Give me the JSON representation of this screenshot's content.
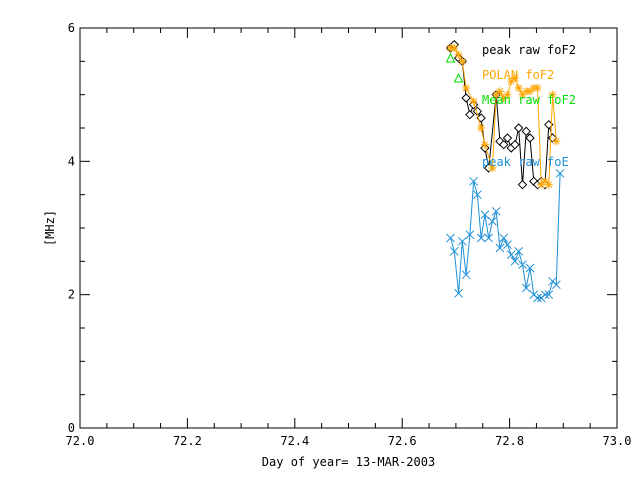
{
  "chart_data": {
    "type": "line",
    "xlabel": "Day of year= 13-MAR-2003",
    "ylabel": "[MHz]",
    "xlim": [
      72.0,
      73.0
    ],
    "ylim": [
      0,
      6
    ],
    "x_ticks": [
      "72.0",
      "72.2",
      "72.4",
      "72.6",
      "72.8",
      "73.0"
    ],
    "y_ticks": [
      "0",
      "2",
      "4",
      "6"
    ],
    "grid": false,
    "legend_position": "top-right",
    "colors": {
      "axes": "#000000",
      "peak_foF2": "#000000",
      "polan_foF2": "#ffa500",
      "mean_foF2": "#00dd00",
      "peak_foE": "#1e90d8"
    },
    "series": [
      {
        "name": "peak raw foF2",
        "marker": "diamond",
        "x": [
          72.69,
          72.697,
          72.705,
          72.712,
          72.719,
          72.726,
          72.733,
          72.74,
          72.747,
          72.754,
          72.761,
          72.775,
          72.782,
          72.789,
          72.796,
          72.803,
          72.81,
          72.817,
          72.824,
          72.831,
          72.838,
          72.845,
          72.852,
          72.859,
          72.866,
          72.873,
          72.88
        ],
        "y": [
          5.7,
          5.75,
          5.55,
          5.5,
          4.95,
          4.7,
          4.85,
          4.75,
          4.65,
          4.2,
          3.9,
          5.0,
          4.3,
          4.25,
          4.35,
          4.2,
          4.25,
          4.5,
          3.65,
          4.45,
          4.35,
          3.7,
          3.65,
          3.7,
          3.65,
          4.55,
          4.35
        ]
      },
      {
        "name": "POLAN foF2",
        "marker": "star",
        "x": [
          72.69,
          72.697,
          72.705,
          72.712,
          72.719,
          72.733,
          72.747,
          72.754,
          72.768,
          72.775,
          72.782,
          72.789,
          72.796,
          72.803,
          72.81,
          72.817,
          72.824,
          72.831,
          72.838,
          72.845,
          72.852,
          72.859,
          72.866,
          72.873,
          72.88,
          72.887
        ],
        "y": [
          5.7,
          5.7,
          5.6,
          5.5,
          5.1,
          4.9,
          4.5,
          4.25,
          3.9,
          5.0,
          5.05,
          4.95,
          5.0,
          5.2,
          5.25,
          5.1,
          5.0,
          5.05,
          5.05,
          5.1,
          5.1,
          3.65,
          3.7,
          3.65,
          5.0,
          4.3
        ]
      },
      {
        "name": "Mean raw foF2",
        "marker": "triangle",
        "x": [
          72.69,
          72.705
        ],
        "y": [
          5.55,
          5.25
        ]
      },
      {
        "name": "peak raw foE",
        "marker": "x",
        "x": [
          72.69,
          72.697,
          72.705,
          72.712,
          72.719,
          72.726,
          72.733,
          72.74,
          72.747,
          72.754,
          72.761,
          72.768,
          72.775,
          72.782,
          72.789,
          72.796,
          72.803,
          72.81,
          72.817,
          72.824,
          72.831,
          72.838,
          72.845,
          72.852,
          72.859,
          72.866,
          72.873,
          72.88,
          72.887,
          72.894
        ],
        "y": [
          2.85,
          2.65,
          2.02,
          2.8,
          2.3,
          2.9,
          3.7,
          3.5,
          2.85,
          3.2,
          2.85,
          3.1,
          3.25,
          2.7,
          2.85,
          2.75,
          2.6,
          2.5,
          2.65,
          2.45,
          2.1,
          2.4,
          2.0,
          1.95,
          1.95,
          2.0,
          2.0,
          2.2,
          2.15,
          3.82
        ]
      }
    ],
    "legend": [
      {
        "label": "peak raw foF2",
        "color": "#000000"
      },
      {
        "label": "POLAN foF2",
        "color": "#ffa500"
      },
      {
        "label": "Mean raw foF2",
        "color": "#00dd00"
      },
      {
        "label": "peak raw foE",
        "color": "#1e90d8"
      }
    ]
  }
}
